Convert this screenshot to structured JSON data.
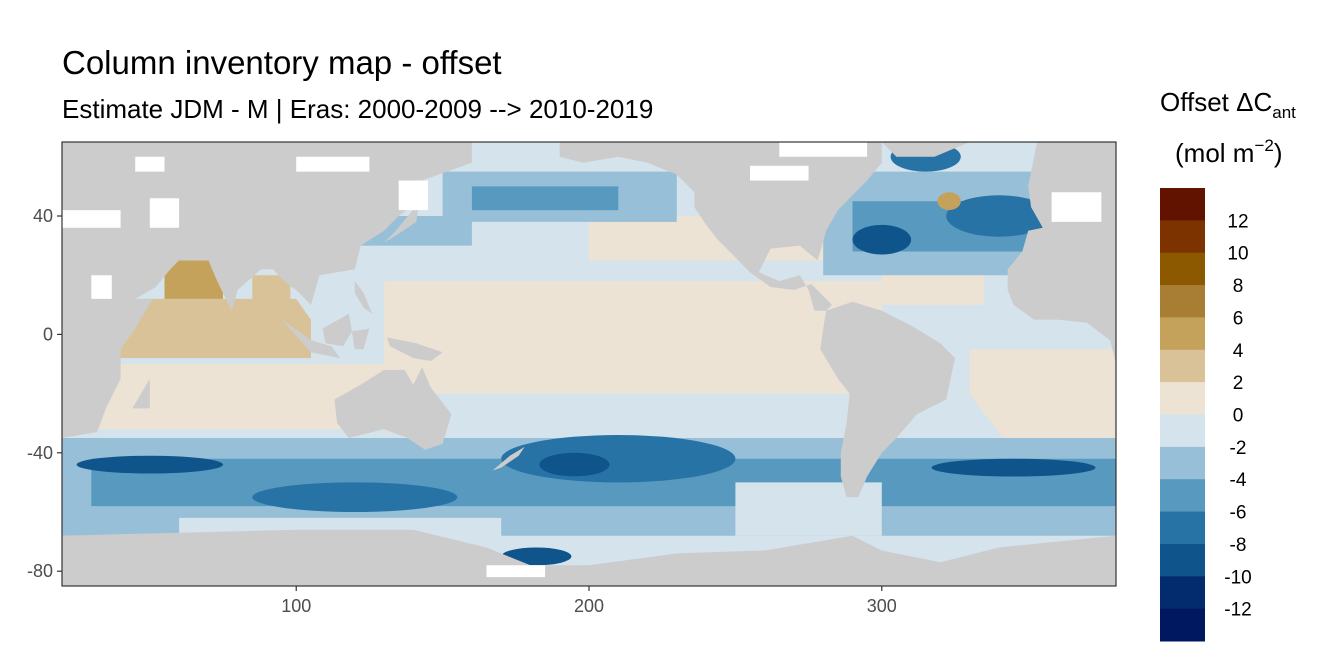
{
  "title": "Column inventory map - offset",
  "subtitle": "Estimate JDM - M | Eras: 2000-2009 --> 2010-2019",
  "colors": {
    "land": "#cccccc",
    "missing": "#ffffff",
    "panel_border": "#333333"
  },
  "map": {
    "type": "raster",
    "variable": "Offset ΔC_ant column inventory",
    "xlim": [
      20,
      380
    ],
    "ylim": [
      -85,
      65
    ],
    "x_ticks": [
      {
        "value": 100,
        "label": "100"
      },
      {
        "value": 200,
        "label": "200"
      },
      {
        "value": 300,
        "label": "300"
      }
    ],
    "y_ticks": [
      {
        "value": 40,
        "label": "40"
      },
      {
        "value": 0,
        "label": "0"
      },
      {
        "value": -40,
        "label": "-40"
      },
      {
        "value": -80,
        "label": "-80"
      }
    ]
  },
  "legend": {
    "title_main": "Offset ΔC",
    "title_sub": "ant",
    "unit_prefix": "(mol m",
    "unit_sup": "−2",
    "unit_suffix": ")",
    "bins": [
      {
        "color": "#611300",
        "label": ""
      },
      {
        "color": "#7d3300",
        "label": "12"
      },
      {
        "color": "#8c5800",
        "label": "10"
      },
      {
        "color": "#a87d34",
        "label": "8"
      },
      {
        "color": "#c4a25c",
        "label": "6"
      },
      {
        "color": "#d9c297",
        "label": "4"
      },
      {
        "color": "#ede3d5",
        "label": "2"
      },
      {
        "color": "#d5e3ec",
        "label": "0"
      },
      {
        "color": "#97bfd8",
        "label": "-2"
      },
      {
        "color": "#5799bf",
        "label": "-4"
      },
      {
        "color": "#2873a6",
        "label": "-6"
      },
      {
        "color": "#0f558b",
        "label": "-8"
      },
      {
        "color": "#022c6e",
        "label": "-10"
      },
      {
        "color": "#00185f",
        "label": "-12"
      }
    ]
  }
}
